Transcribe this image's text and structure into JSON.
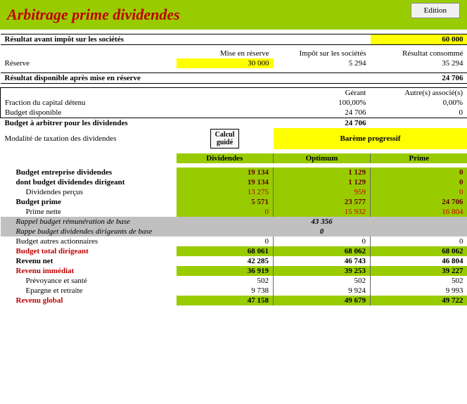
{
  "header": {
    "title": "Arbitrage prime dividendes",
    "edition_btn": "Edition"
  },
  "s1": {
    "resultat_avant_impot_label": "Résultat avant impôt sur les sociétés",
    "resultat_avant_impot_val": "60 000",
    "col_reserve": "Mise en réserve",
    "col_impot": "Impôt sur les sociétés",
    "col_consomme": "Résultat consommé",
    "reserve_label": "Réserve",
    "reserve_val": "30 000",
    "impot_val": "5 294",
    "consomme_val": "35 294",
    "resultat_dispo_label": "Résultat disponible après mise en réserve",
    "resultat_dispo_val": "24 706"
  },
  "s2": {
    "col_gerant": "Gérant",
    "col_autres": "Autre(s) associé(s)",
    "fraction_label": "Fraction du capital détenu",
    "fraction_gerant": "100,00%",
    "fraction_autres": "0,00%",
    "budget_dispo_label": "Budget disponible",
    "budget_dispo_gerant": "24 706",
    "budget_dispo_autres": "0",
    "budget_arbitrer_label": "Budget à arbitrer pour les dividendes",
    "budget_arbitrer_val": "24 706",
    "modalite_label": "Modalité de taxation des dividendes",
    "calc_btn_l1": "Calcul",
    "calc_btn_l2": "guidé",
    "bareme": "Barème progressif"
  },
  "tbl": {
    "header": {
      "dividendes": "Dividendes",
      "optimum": "Optimum",
      "prime": "Prime"
    },
    "rows": [
      {
        "label": "Budget entreprise dividendes",
        "d": "19 134",
        "o": "1 129",
        "p": "0",
        "style": "bold",
        "green": true,
        "dark": true
      },
      {
        "label": "dont budget dividendes dirigeant",
        "d": "19 134",
        "o": "1 129",
        "p": "0",
        "style": "bold",
        "green": true,
        "dark": true
      },
      {
        "label": "Dividendes perçus",
        "d": "13 275",
        "o": "959",
        "p": "0",
        "indent": 2,
        "green": true,
        "red": true
      },
      {
        "label": "Budget prime",
        "d": "5 571",
        "o": "23 577",
        "p": "24 706",
        "style": "bold",
        "green": true,
        "dark": true
      },
      {
        "label": "Prime nette",
        "d": "0",
        "o": "15 932",
        "p": "16 804",
        "indent": 2,
        "green": true,
        "red": true
      }
    ],
    "gray1": {
      "label": "Rappel budget rémunération de base",
      "val": "43 356"
    },
    "gray2": {
      "label": "Rappe budget dividendes dirigeants de base",
      "val": "0"
    },
    "rest": [
      {
        "label": "Budget autres actionnaires",
        "d": "0",
        "o": "0",
        "p": "0",
        "plain": true
      },
      {
        "label": "Budget total dirigeant",
        "d": "68 061",
        "o": "68 062",
        "p": "68 062",
        "style": "bold red-text",
        "green": true
      },
      {
        "label": "Revenu net",
        "d": "42 285",
        "o": "46 743",
        "p": "46 804",
        "style": "bold"
      },
      {
        "label": "Revenu immédiat",
        "d": "36 919",
        "o": "39 253",
        "p": "39 227",
        "style": "bold red-text",
        "green": true
      },
      {
        "label": "Prévoyance et santé",
        "d": "502",
        "o": "502",
        "p": "502",
        "indent": 2
      },
      {
        "label": "Epargne et retraite",
        "d": "9 738",
        "o": "9 924",
        "p": "9 993",
        "indent": 2
      },
      {
        "label": "Revenu global",
        "d": "47 158",
        "o": "49 679",
        "p": "49 722",
        "style": "bold red-text",
        "green": true
      }
    ]
  }
}
